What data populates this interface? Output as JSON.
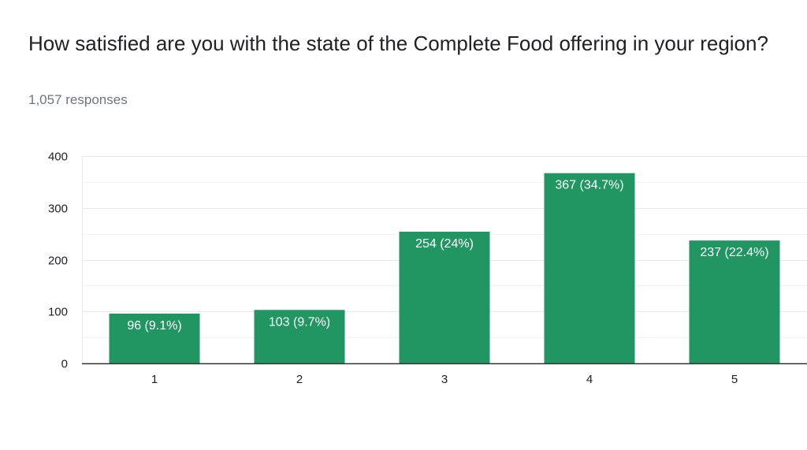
{
  "question": {
    "title": "How satisfied are you with the state of the Complete Food offering in your region?",
    "responses": "1,057 responses"
  },
  "colors": {
    "bar": "#219562",
    "grid_major": "#e8e8e8",
    "grid_minor": "#f3f3f3",
    "axis": "#333333"
  },
  "chart_data": {
    "type": "bar",
    "categories": [
      "1",
      "2",
      "3",
      "4",
      "5"
    ],
    "values": [
      96,
      103,
      254,
      367,
      237
    ],
    "data_labels": [
      "96 (9.1%)",
      "103 (9.7%)",
      "254 (24%)",
      "367 (34.7%)",
      "237 (22.4%)"
    ],
    "ylim": [
      0,
      400
    ],
    "yticks": [
      0,
      100,
      200,
      300,
      400
    ],
    "grid": true,
    "legend": "none"
  }
}
